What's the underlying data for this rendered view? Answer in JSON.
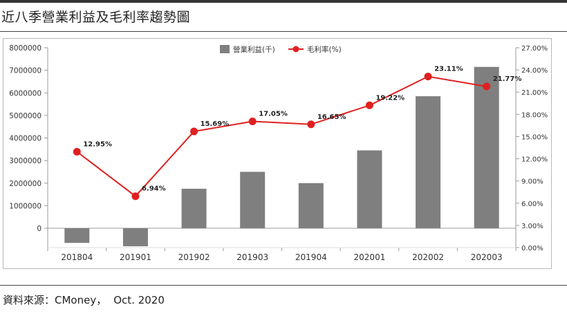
{
  "page": {
    "title": "近八季營業利益及毛利率趨勢圖",
    "source_label": "資料來源：CMoney，",
    "source_date": "Oct. 2020"
  },
  "colors": {
    "bar": "#7f7f7f",
    "line": "#e02020",
    "axis": "#999999",
    "text": "#333333"
  },
  "chart_data": {
    "type": "bar",
    "title": "近八季營業利益及毛利率趨勢圖",
    "categories": [
      "201804",
      "201901",
      "201902",
      "201903",
      "201904",
      "202001",
      "202002",
      "202003"
    ],
    "series": [
      {
        "name": "營業利益(千)",
        "type": "bar",
        "axis": "left",
        "values": [
          -650000,
          -800000,
          1750000,
          2500000,
          2000000,
          3450000,
          5850000,
          7150000
        ]
      },
      {
        "name": "毛利率(%)",
        "type": "line",
        "axis": "right",
        "values": [
          12.95,
          6.94,
          15.69,
          17.05,
          16.65,
          19.22,
          23.11,
          21.77
        ],
        "labels": [
          "12.95%",
          "6.94%",
          "15.69%",
          "17.05%",
          "16.65%",
          "19.22%",
          "23.11%",
          "21.77%"
        ]
      }
    ],
    "y_left": {
      "ylim": [
        -800000,
        8000000
      ],
      "ticks": [
        0,
        1000000,
        2000000,
        3000000,
        4000000,
        5000000,
        6000000,
        7000000,
        8000000
      ],
      "tick_labels": [
        "0",
        "1000000",
        "2000000",
        "3000000",
        "4000000",
        "5000000",
        "6000000",
        "7000000",
        "8000000"
      ]
    },
    "y_right": {
      "ylim": [
        0,
        27
      ],
      "ticks": [
        0,
        3,
        6,
        9,
        12,
        15,
        18,
        21,
        24,
        27
      ],
      "tick_labels": [
        "0.00%",
        "3.00%",
        "6.00%",
        "9.00%",
        "12.00%",
        "15.00%",
        "18.00%",
        "21.00%",
        "24.00%",
        "27.00%"
      ]
    },
    "legend": [
      "營業利益(千)",
      "毛利率(%)"
    ],
    "legend_position": "top-center",
    "grid": false
  }
}
